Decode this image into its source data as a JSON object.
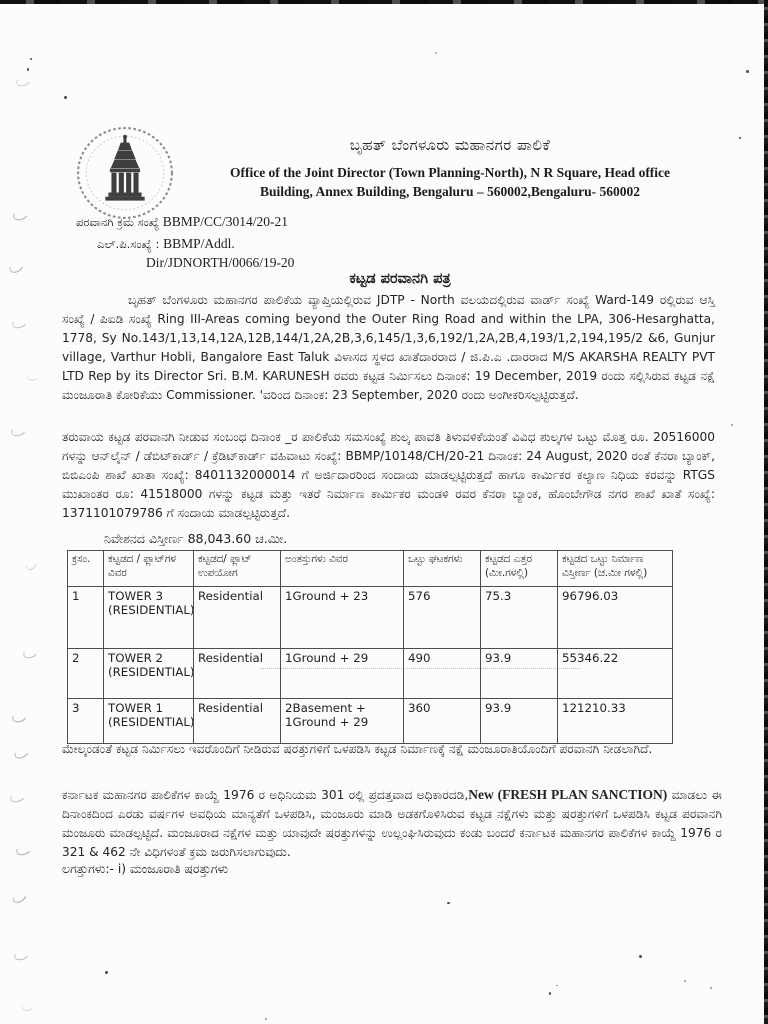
{
  "colors": {
    "paper": "#fcfcfa",
    "ink": "#1f1f1f"
  },
  "header": {
    "org_kn": "ಬೃಹತ್ ಬೆಂಗಳೂರು ಮಹಾನಗರ ಪಾಲಿಕೆ",
    "office_line1": "Office of the Joint Director (Town Planning-North), N R Square, Head office",
    "office_line2": "Building, Annex Building, Bengaluru – 560002,Bengaluru- 560002",
    "logo_name": "bbmp-emblem"
  },
  "refs": {
    "permit_label": "ಪರವಾನಗಿ ಕ್ರಮ ಸಂಖ್ಯೆ",
    "permit_value": "BBMP/CC/3014/20-21",
    "lp_label": "ಎಲ್.ಪಿ.ಸಂಖ್ಯೆ :",
    "lp_value_line1": "BBMP/Addl.",
    "lp_value_line2": "Dir/JDNORTH/0066/19-20"
  },
  "body": {
    "doc_title": "ಕಟ್ಟಡ ಪರವಾನಗಿ ಪತ್ರ",
    "para1": "ಬೃಹತ್ ಬೆಂಗಳೂರು ಮಹಾನಗರ ಪಾಲಿಕೆಯ ವ್ಯಾಪ್ತಿಯಲ್ಲಿರುವ JDTP - North ವಲಯದಲ್ಲಿರುವ ವಾರ್ಡ್ ಸಂಖ್ಯೆ Ward-149 ರಲ್ಲಿರುವ ಆಸ್ತಿ ಸಂಖ್ಯೆ / ಪಿಐಡಿ ಸಂಖ್ಯೆ Ring III-Areas coming beyond the Outer Ring Road and within the LPA, 306-Hesarghatta, 1778, Sy No.143/1,13,14,12A,12B,144/1,2A,2B,3,6,145/1,3,6,192/1,2A,2B,4,193/1,2,194,195/2 &6, Gunjur village, Varthur Hobli, Bangalore East Taluk ವಿಳಾಸದ ಸ್ಥಳದ ಖಾತೆದಾರರಾದ / ಜಿ.ಪಿ.ಎ .ದಾರರಾದ M/S AKARSHA REALTY PVT LTD Rep by its Director Sri. B.M. KARUNESH ರವರು ಕಟ್ಟಡ ನಿರ್ಮಿಸಲು ದಿನಾಂಕ: 19 December, 2019 ರಂದು ಸಲ್ಲಿಸಿರುವ ಕಟ್ಟಡ ನಕ್ಷೆ ಮಂಜೂರಾತಿ ಕೋರಿಕೆಯು Commissioner. 'ವರಿಂದ ದಿನಾಂಕ: 23 September, 2020 ರಂದು ಅಂಗೀಕರಿಸಲ್ಪಟ್ಟಿರುತ್ತದೆ.",
    "para2": "ತರುವಾಯ ಕಟ್ಟಡ ಪರವಾನಗಿ ನೀಡುವ ಸಂಬಂಧ ದಿನಾಂಕ _ರ ಪಾಲಿಕೆಯ ಸಮಸಂಖ್ಯೆ ಶುಲ್ಕ ಪಾವತಿ ತಿಳುವಳಿಕೆಯಂತೆ ವಿವಿಧ ಶುಲ್ಕಗಳ ಒಟ್ಟು ಮೊತ್ತ ರೂ. 20516000 ಗಳನ್ನು ಆನ್‌ಲೈನ್ / ಡೆಬಿಟ್‌ಕಾರ್ಡ್ / ಕ್ರೆಡಿಟ್‌ಕಾರ್ಡ್ ವಹಿವಾಟು ಸಂಖ್ಯೆ: BBMP/10148/CH/20-21 ದಿನಾಂಕ: 24 August, 2020 ರಂತೆ ಕೆನರಾ ಬ್ಯಾಂಕ್, ಬಿಬಿಎಂಪಿ ಶಾಖೆ ಖಾತಾ ಸಂಖ್ಯೆ: 8401132000014 ಗೆ ಅರ್ಜಿದಾರರಿಂದ ಸಂದಾಯ ಮಾಡಲ್ಪಟ್ಟಿರುತ್ತದೆ ಹಾಗೂ ಕಾರ್ಮಿಕರ ಕಲ್ಯಾಣ ನಿಧಿಯ ಕರವನ್ನು RTGS ಮುಖಾಂತರ ರೂ: 41518000 ಗಳನ್ನು ಕಟ್ಟಡ ಮತ್ತು ಇತರೆ ನಿರ್ಮಾಣ ಕಾರ್ಮಿಕರ ಮಂಡಳಿ ರವರ ಕೆನರಾ ಬ್ಯಾಂಕ, ಹೊಂಬೇಗೌಡ ನಗರ ಶಾಖೆ ಖಾತೆ ಸಂಖ್ಯೆ: 1371101079786 ಗೆ ಸಂದಾಯ ಮಾಡಲ್ಪಟ್ಟಿರುತ್ತದೆ.",
    "site_area": "ನಿವೇಶನದ ವಿಸ್ತೀರ್ಣ 88,043.60 ಚ.ಮೀ.",
    "para3": "ಮೇಲ್ಕಂಡಂತೆ ಕಟ್ಟಡ ನಿರ್ಮಿಸಲು ಇವರೊಂದಿಗೆ ನೀಡಿರುವ ಷರತ್ತುಗಳಿಗೆ ಒಳಪಡಿಸಿ ಕಟ್ಟಡ ನಿರ್ಮಾಣಕ್ಕೆ ನಕ್ಷೆ ಮಂಜೂರಾತಿಯೊಂದಿಗೆ ಪರವಾನಗಿ ನೀಡಲಾಗಿದೆ.",
    "para4_before": "ಕರ್ನಾಟಕ ಮಹಾನಗರ ಪಾಲಿಕೆಗಳ ಕಾಯ್ದೆ 1976 ರ ಅಧಿನಿಯಮ 301 ರಲ್ಲಿ ಪ್ರದತ್ತವಾದ ಅಧಿಕಾರದಡಿ,",
    "para4_bold": "New (FRESH PLAN SANCTION)",
    "para4_after": " ಮಾಡಲು ಈ ದಿನಾಂಕದಿಂದ ಎರಡು ವರ್ಷಗಳ ಅವಧಿಯ ಮಾನ್ಯತೆಗೆ ಒಳಪಡಿಸಿ, ಮಂಜೂರು ಮಾಡಿ ಅಡಕಗೊಳಿಸಿರುವ ಕಟ್ಟಡ ನಕ್ಷೆಗಳು ಮತ್ತು ಷರತ್ತುಗಳಿಗೆ ಒಳಪಡಿಸಿ ಕಟ್ಟಡ ಪರವಾನಗಿ ಮಂಜೂರು ಮಾಡಲ್ಪಟ್ಟಿದೆ. ಮಂಜೂರಾದ ನಕ್ಷೆಗಳ ಮತ್ತು ಯಾವುದೇ ಷರತ್ತುಗಳನ್ನು ಉಲ್ಲಂಘಿಸಿರುವುದು ಕಂಡು ಬಂದರೆ ಕರ್ನಾಟಕ ಮಹಾನಗರ ಪಾಲಿಕೆಗಳ ಕಾಯ್ದೆ 1976 ರ 321 & 462 ನೇ ವಿಧಿಗಳಂತೆ ಕ್ರಮ ಜರುಗಿಸಲಾಗುವುದು.",
    "attachments": "ಲಗತ್ತುಗಳು:- i) ಮಂಜೂರಾತಿ ಷರತ್ತುಗಳು"
  },
  "table": {
    "headers": [
      "ಕ್ರಸಂ.",
      "ಕಟ್ಟಡದ / ಫ್ಲಾಟ್‌ಗಳ ವಿವರ",
      "ಕಟ್ಟಡದ/ ಫ್ಲಾಟ್ ಉಪಯೋಗ",
      "ಅಂತಸ್ತುಗಳು ವಿವರ",
      "ಒಟ್ಟು ಘಟಕಗಳು",
      "ಕಟ್ಟಡದ ಎತ್ತರ (ಮೀ.ಗಳಲ್ಲಿ)",
      "ಕಟ್ಟಡದ ಒಟ್ಟು ನಿರ್ಮಾಣ ವಿಸ್ತೀರ್ಣ (ಚ.ಮೀ ಗಳಲ್ಲಿ)"
    ],
    "rows": [
      [
        "1",
        "TOWER 3 (RESIDENTIAL)",
        "Residential",
        "1Ground + 23",
        "576",
        "75.3",
        "96796.03"
      ],
      [
        "2",
        "TOWER 2 (RESIDENTIAL)",
        "Residential",
        "1Ground + 29",
        "490",
        "93.9",
        "55346.22"
      ],
      [
        "3",
        "TOWER 1 (RESIDENTIAL)",
        "Residential",
        "2Basement + 1Ground + 29",
        "360",
        "93.9",
        "121210.33"
      ]
    ]
  }
}
